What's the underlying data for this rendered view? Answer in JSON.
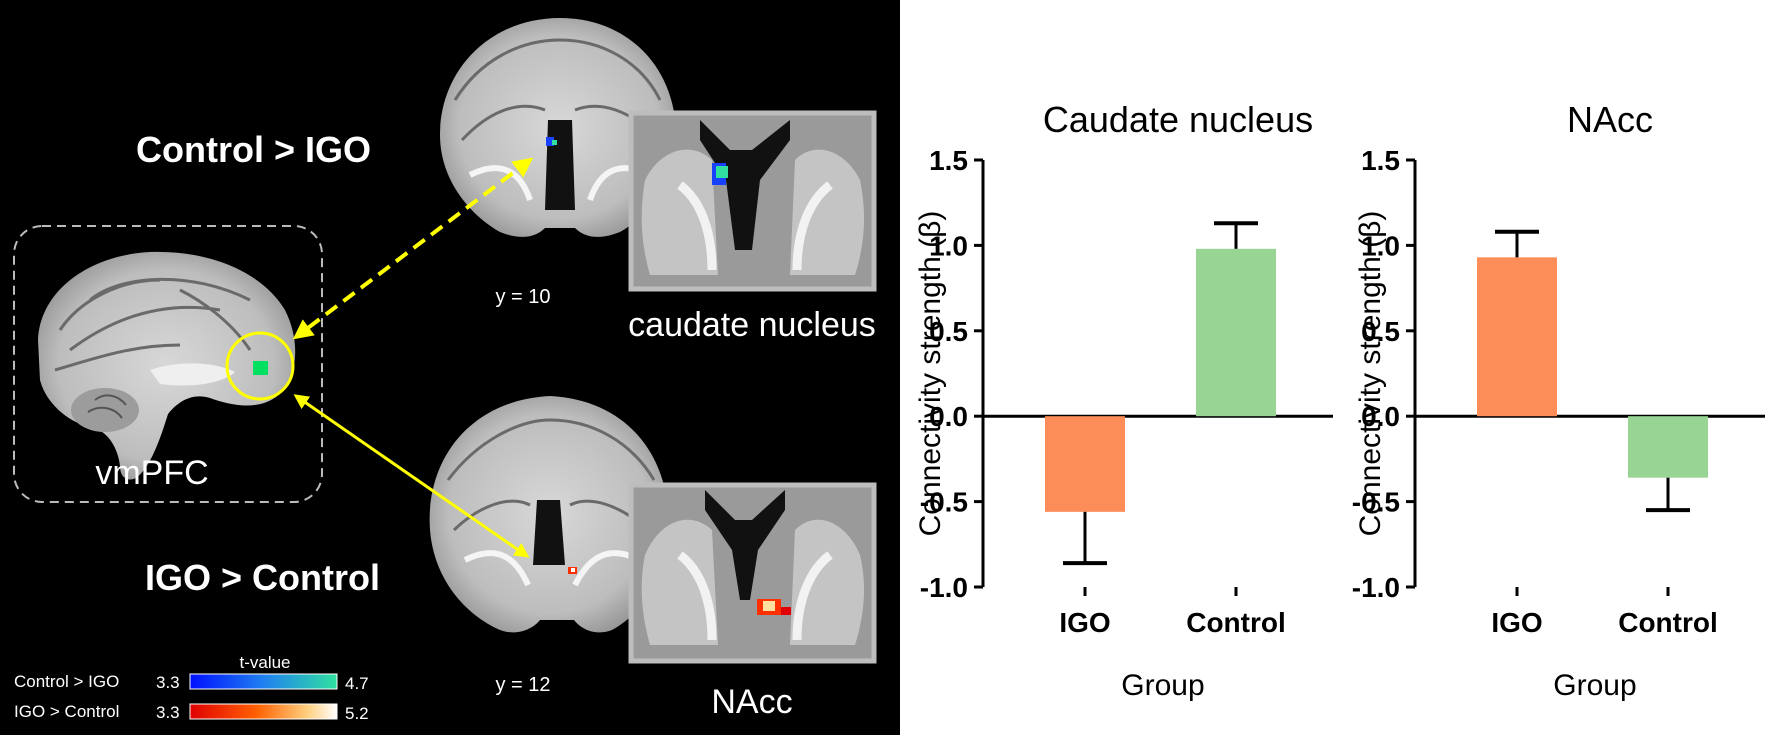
{
  "brain": {
    "contrast_top": "Control > IGO",
    "contrast_bottom": "IGO > Control",
    "seed_label": "vmPFC",
    "slice_top": "y = 10",
    "slice_bottom": "y = 12",
    "inset_top_label": "caudate nucleus",
    "inset_bottom_label": "NAcc",
    "colorbar": {
      "title": "t-value",
      "rows": [
        {
          "label": "Control > IGO",
          "min": "3.3",
          "max": "4.7"
        },
        {
          "label": "IGO > Control",
          "min": "3.3",
          "max": "5.2"
        }
      ]
    },
    "colors": {
      "arrow": "#ffff00",
      "seed": "#00e060",
      "blue_cluster": "#1840ff",
      "red_cluster": "#ff3000"
    }
  },
  "chart_data": [
    {
      "type": "bar",
      "title": "Caudate nucleus",
      "categories": [
        "IGO",
        "Control"
      ],
      "values": [
        -0.56,
        0.98
      ],
      "errors": [
        0.3,
        0.15
      ],
      "error_direction": [
        "down",
        "up"
      ],
      "colors": [
        "#fc8d59",
        "#98d594"
      ],
      "xlabel": "Group",
      "ylabel": "Connectivity strength (β)",
      "ylim": [
        -1.0,
        1.5
      ],
      "yticks": [
        "-1.0",
        "-0.5",
        "0.0",
        "0.5",
        "1.0",
        "1.5"
      ]
    },
    {
      "type": "bar",
      "title": "NAcc",
      "categories": [
        "IGO",
        "Control"
      ],
      "values": [
        0.93,
        -0.36
      ],
      "errors": [
        0.15,
        0.19
      ],
      "error_direction": [
        "up",
        "down"
      ],
      "colors": [
        "#fc8d59",
        "#98d594"
      ],
      "xlabel": "Group",
      "ylabel": "Connectivity strength (β)",
      "ylim": [
        -1.0,
        1.5
      ],
      "yticks": [
        "-1.0",
        "-0.5",
        "0.0",
        "0.5",
        "1.0",
        "1.5"
      ]
    }
  ]
}
